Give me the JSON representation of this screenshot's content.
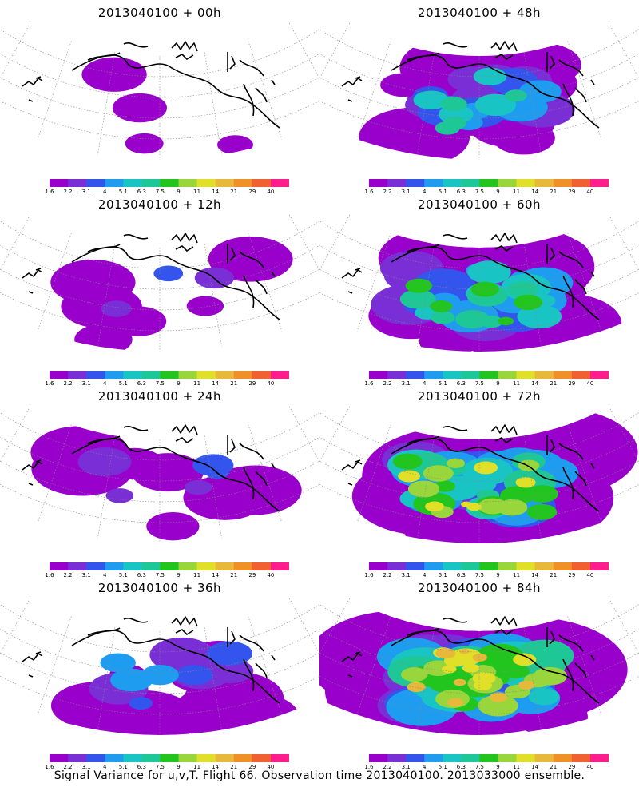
{
  "colorbar": {
    "colors": [
      "#9900cc",
      "#7a2ed6",
      "#3355ee",
      "#1e9cf0",
      "#19c4c4",
      "#1ec896",
      "#22c41e",
      "#99d63c",
      "#e0e028",
      "#e8b83a",
      "#f09028",
      "#f06030",
      "#ff1e8c"
    ],
    "labels": [
      "1.6",
      "2.2",
      "3.1",
      "4",
      "5.1",
      "6.3",
      "7.5",
      "9",
      "11",
      "14",
      "21",
      "29",
      "40"
    ]
  },
  "panels": [
    {
      "title": "2013040100 + 00h",
      "level": 0
    },
    {
      "title": "2013040100 + 48h",
      "level": 3
    },
    {
      "title": "2013040100 + 12h",
      "level": 1
    },
    {
      "title": "2013040100 + 60h",
      "level": 4
    },
    {
      "title": "2013040100 + 24h",
      "level": 1.5
    },
    {
      "title": "2013040100 + 72h",
      "level": 5
    },
    {
      "title": "2013040100 + 36h",
      "level": 2
    },
    {
      "title": "2013040100 + 84h",
      "level": 6
    }
  ],
  "caption": "Signal Variance for u,v,T. Flight 66. Observation time 2013040100. 2013033000 ensemble."
}
